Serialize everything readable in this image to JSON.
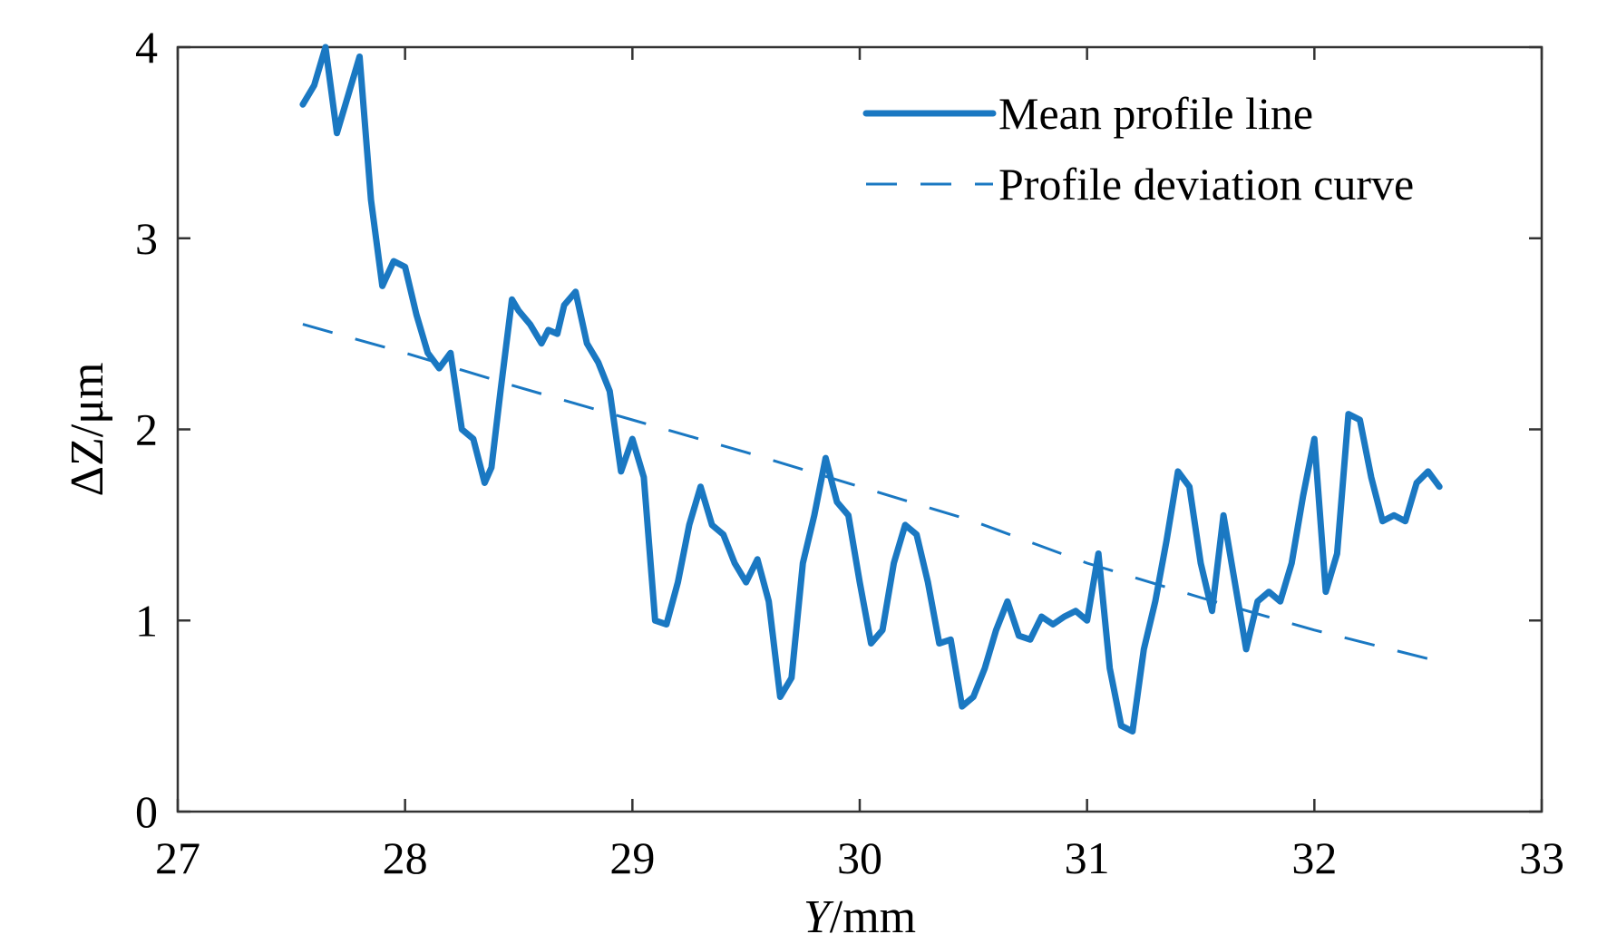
{
  "colors": {
    "series": "#1a78c2",
    "axis": "#333333",
    "background": "#ffffff"
  },
  "chart_data": {
    "type": "line",
    "title": "",
    "xlabel": {
      "italic": "Y",
      "rest": "/mm"
    },
    "ylabel": "ΔZ/μm",
    "xlim": [
      27,
      33
    ],
    "ylim": [
      0,
      4
    ],
    "xticks": [
      "27",
      "28",
      "29",
      "30",
      "31",
      "32",
      "33"
    ],
    "yticks": [
      "0",
      "1",
      "2",
      "3",
      "4"
    ],
    "grid": false,
    "legend_position": "top-right",
    "series": [
      {
        "name": "Mean profile line",
        "style": "solid",
        "x": [
          27.55,
          27.6,
          27.65,
          27.7,
          27.75,
          27.8,
          27.85,
          27.9,
          27.95,
          28.0,
          28.05,
          28.1,
          28.15,
          28.2,
          28.25,
          28.3,
          28.35,
          28.38,
          28.42,
          28.47,
          28.5,
          28.55,
          28.6,
          28.63,
          28.67,
          28.7,
          28.75,
          28.8,
          28.85,
          28.9,
          28.95,
          29.0,
          29.05,
          29.1,
          29.15,
          29.2,
          29.25,
          29.3,
          29.35,
          29.4,
          29.45,
          29.5,
          29.55,
          29.6,
          29.65,
          29.7,
          29.75,
          29.8,
          29.85,
          29.9,
          29.95,
          30.0,
          30.05,
          30.1,
          30.15,
          30.2,
          30.25,
          30.3,
          30.35,
          30.4,
          30.45,
          30.5,
          30.55,
          30.6,
          30.65,
          30.7,
          30.75,
          30.8,
          30.85,
          30.9,
          30.95,
          31.0,
          31.05,
          31.1,
          31.15,
          31.2,
          31.25,
          31.3,
          31.35,
          31.4,
          31.45,
          31.5,
          31.55,
          31.6,
          31.65,
          31.7,
          31.75,
          31.8,
          31.85,
          31.9,
          31.95,
          32.0,
          32.05,
          32.1,
          32.15,
          32.2,
          32.25,
          32.3,
          32.35,
          32.4,
          32.45,
          32.5,
          32.55
        ],
        "y": [
          3.7,
          3.8,
          4.0,
          3.55,
          3.75,
          3.95,
          3.2,
          2.75,
          2.88,
          2.85,
          2.6,
          2.4,
          2.32,
          2.4,
          2.0,
          1.95,
          1.72,
          1.8,
          2.2,
          2.68,
          2.62,
          2.55,
          2.45,
          2.52,
          2.5,
          2.65,
          2.72,
          2.45,
          2.35,
          2.2,
          1.78,
          1.95,
          1.75,
          1.0,
          0.98,
          1.2,
          1.5,
          1.7,
          1.5,
          1.45,
          1.3,
          1.2,
          1.32,
          1.1,
          0.6,
          0.7,
          1.3,
          1.55,
          1.85,
          1.62,
          1.55,
          1.2,
          0.88,
          0.95,
          1.3,
          1.5,
          1.45,
          1.2,
          0.88,
          0.9,
          0.55,
          0.6,
          0.75,
          0.95,
          1.1,
          0.92,
          0.9,
          1.02,
          0.98,
          1.02,
          1.05,
          1.0,
          1.35,
          0.75,
          0.45,
          0.42,
          0.85,
          1.1,
          1.42,
          1.78,
          1.7,
          1.3,
          1.05,
          1.55,
          1.2,
          0.85,
          1.1,
          1.15,
          1.1,
          1.3,
          1.65,
          1.95,
          1.15,
          1.35,
          2.08,
          2.05,
          1.75,
          1.52,
          1.55,
          1.52,
          1.72,
          1.78,
          1.7
        ]
      },
      {
        "name": "Profile deviation curve",
        "style": "dashed",
        "x": [
          27.55,
          28.0,
          28.5,
          29.0,
          29.5,
          30.0,
          30.5,
          31.0,
          31.5,
          32.0,
          32.5
        ],
        "y": [
          2.55,
          2.4,
          2.22,
          2.05,
          1.88,
          1.7,
          1.52,
          1.3,
          1.12,
          0.95,
          0.8
        ]
      }
    ]
  }
}
